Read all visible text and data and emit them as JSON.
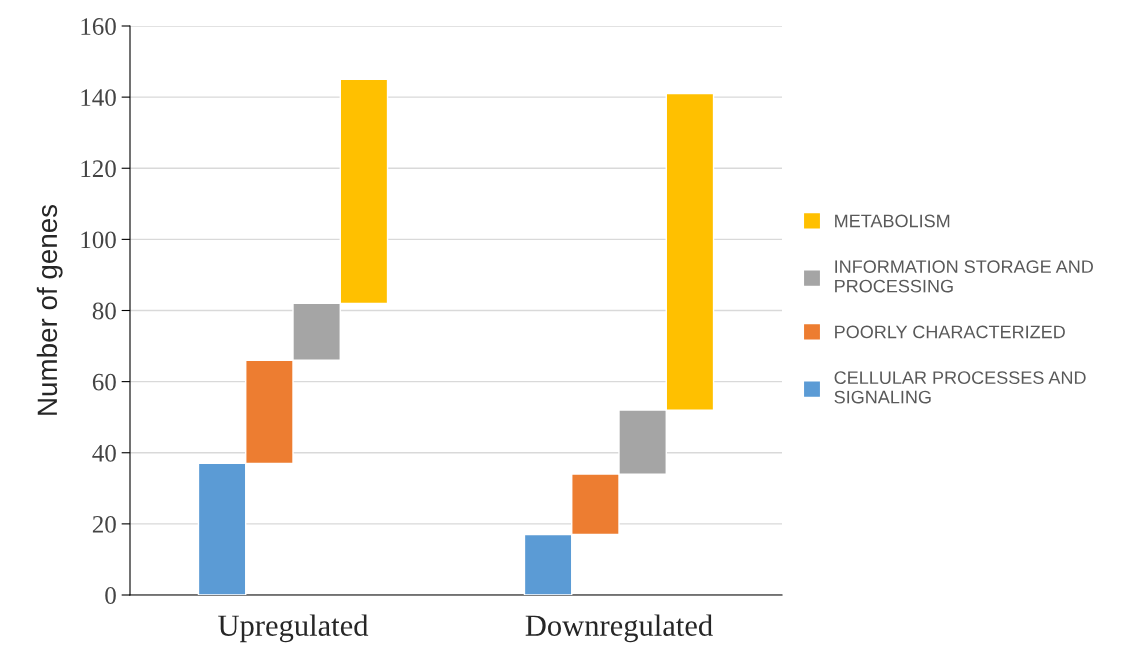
{
  "chart_data": {
    "type": "bar",
    "ylabel": "Number of genes",
    "categories": [
      "Upregulated",
      "Downregulated"
    ],
    "series": [
      {
        "name": "CELLULAR PROCESSES AND SIGNALING",
        "color": "#5b9bd5",
        "values": [
          37,
          17
        ],
        "base": [
          0,
          0
        ]
      },
      {
        "name": "POORLY CHARACTERIZED",
        "color": "#ed7d31",
        "values": [
          29,
          17
        ],
        "base": [
          37,
          17
        ]
      },
      {
        "name": "INFORMATION STORAGE AND PROCESSING",
        "color": "#a5a5a5",
        "values": [
          16,
          18
        ],
        "base": [
          66,
          34
        ]
      },
      {
        "name": "METABOLISM",
        "color": "#ffc000",
        "values": [
          63,
          89
        ],
        "base": [
          82,
          52
        ]
      }
    ],
    "ylim": [
      0,
      160
    ],
    "yticks": [
      0,
      20,
      40,
      60,
      80,
      100,
      120,
      140,
      160
    ],
    "grid": "y",
    "legend": "right"
  }
}
